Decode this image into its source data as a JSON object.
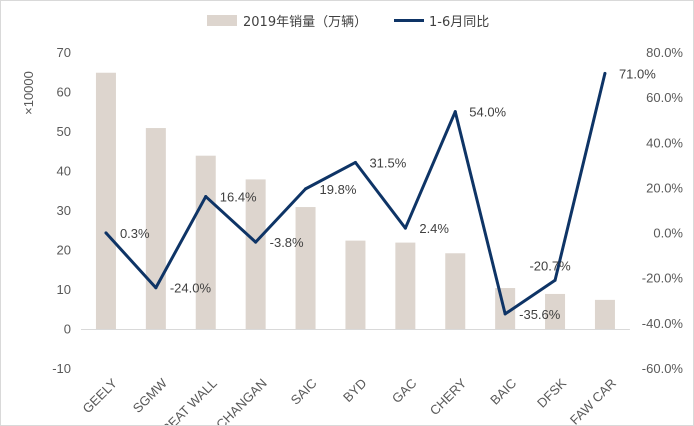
{
  "chart_data": {
    "type": "bar",
    "categories": [
      "GEELY",
      "SGMW",
      "GREAT WALL",
      "CHANGAN",
      "SAIC",
      "BYD",
      "GAC",
      "CHERY",
      "BAIC",
      "DFSK",
      "FAW CAR"
    ],
    "series": [
      {
        "name": "2019年销量（万辆）",
        "type": "bar",
        "axis": "left",
        "values": [
          65,
          51,
          44,
          38,
          31,
          22.5,
          22,
          19.3,
          10.5,
          9,
          7.5
        ]
      },
      {
        "name": "1-6月同比",
        "type": "line",
        "axis": "right",
        "values": [
          0.3,
          -24.0,
          16.4,
          -3.8,
          19.8,
          31.5,
          2.4,
          54.0,
          -35.6,
          -20.7,
          71.0
        ],
        "labels": [
          "0.3%",
          "-24.0%",
          "16.4%",
          "-3.8%",
          "19.8%",
          "31.5%",
          "2.4%",
          "54.0%",
          "-35.6%",
          "-20.7%",
          "71.0%"
        ]
      }
    ],
    "left_axis": {
      "label": "×10000",
      "ylim": [
        -10,
        70
      ],
      "ticks": [
        "-10",
        "0",
        "10",
        "20",
        "30",
        "40",
        "50",
        "60",
        "70"
      ]
    },
    "right_axis": {
      "ylim": [
        -60,
        80
      ],
      "ticks": [
        "-60.0%",
        "-40.0%",
        "-20.0%",
        "0.0%",
        "20.0%",
        "40.0%",
        "60.0%",
        "80.0%"
      ]
    },
    "legend": {
      "position": "top"
    },
    "grid": false,
    "colors": {
      "bar": "#ddd5ce",
      "line": "#0e3466"
    }
  }
}
